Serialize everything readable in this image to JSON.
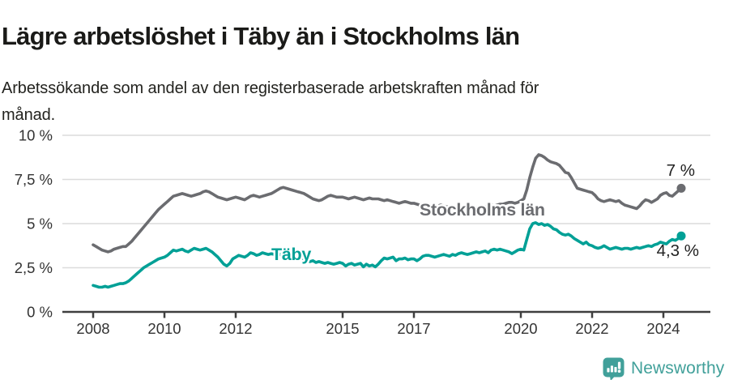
{
  "header": {
    "title": "Lägre arbetslöshet i Täby än i Stockholms län",
    "subtitle": "Arbetssökande som andel av den registerbaserade arbetskraften månad för\nmånad."
  },
  "chart_data": {
    "type": "line",
    "title": "Lägre arbetslöshet i Täby än i Stockholms län",
    "xlabel": "",
    "ylabel": "",
    "unit": "%",
    "grid": true,
    "ylim": [
      0,
      10
    ],
    "x_start_year": 2008,
    "points_per_year": 12,
    "x_end": "mid 2024",
    "y_ticks": [
      {
        "value": 10,
        "label": "10 %"
      },
      {
        "value": 7.5,
        "label": "7,5 %"
      },
      {
        "value": 5,
        "label": "5 %"
      },
      {
        "value": 2.5,
        "label": "2,5 %"
      },
      {
        "value": 0,
        "label": "0 %"
      }
    ],
    "x_ticks": [
      {
        "year": 2008,
        "label": "2008"
      },
      {
        "year": 2010,
        "label": "2010"
      },
      {
        "year": 2012,
        "label": "2012"
      },
      {
        "year": 2015,
        "label": "2015"
      },
      {
        "year": 2017,
        "label": "2017"
      },
      {
        "year": 2020,
        "label": "2020"
      },
      {
        "year": 2022,
        "label": "2022"
      },
      {
        "year": 2024,
        "label": "2024"
      }
    ],
    "series": [
      {
        "name": "Stockholms län",
        "color": "#6b6c70",
        "end_label": "7 %",
        "end_value": 7.0,
        "values": [
          3.8,
          3.7,
          3.6,
          3.5,
          3.45,
          3.4,
          3.45,
          3.55,
          3.6,
          3.65,
          3.7,
          3.7,
          3.85,
          4.0,
          4.2,
          4.4,
          4.6,
          4.8,
          5.0,
          5.2,
          5.4,
          5.6,
          5.8,
          5.95,
          6.1,
          6.25,
          6.4,
          6.55,
          6.6,
          6.65,
          6.7,
          6.65,
          6.6,
          6.55,
          6.6,
          6.65,
          6.7,
          6.8,
          6.85,
          6.8,
          6.7,
          6.6,
          6.5,
          6.45,
          6.4,
          6.35,
          6.4,
          6.45,
          6.5,
          6.45,
          6.4,
          6.35,
          6.45,
          6.55,
          6.6,
          6.55,
          6.5,
          6.55,
          6.6,
          6.65,
          6.7,
          6.8,
          6.9,
          7.0,
          7.05,
          7.0,
          6.95,
          6.9,
          6.85,
          6.8,
          6.75,
          6.7,
          6.6,
          6.5,
          6.4,
          6.35,
          6.3,
          6.35,
          6.45,
          6.55,
          6.6,
          6.55,
          6.5,
          6.5,
          6.5,
          6.45,
          6.4,
          6.45,
          6.5,
          6.45,
          6.4,
          6.35,
          6.4,
          6.45,
          6.4,
          6.4,
          6.4,
          6.35,
          6.3,
          6.35,
          6.3,
          6.25,
          6.2,
          6.15,
          6.2,
          6.25,
          6.2,
          6.15,
          6.15,
          6.1,
          6.05,
          6.1,
          6.05,
          6.0,
          6.0,
          5.95,
          6.0,
          6.05,
          6.0,
          5.95,
          5.95,
          5.9,
          5.85,
          5.9,
          5.85,
          5.8,
          5.85,
          5.9,
          5.85,
          5.9,
          5.95,
          5.9,
          5.95,
          6.0,
          6.05,
          6.0,
          6.05,
          6.1,
          6.1,
          6.15,
          6.2,
          6.2,
          6.15,
          6.2,
          6.3,
          6.4,
          6.9,
          7.6,
          8.2,
          8.7,
          8.9,
          8.85,
          8.75,
          8.6,
          8.5,
          8.45,
          8.4,
          8.3,
          8.1,
          7.9,
          7.85,
          7.6,
          7.3,
          7.0,
          6.95,
          6.9,
          6.85,
          6.8,
          6.75,
          6.6,
          6.4,
          6.3,
          6.25,
          6.3,
          6.35,
          6.3,
          6.25,
          6.3,
          6.15,
          6.05,
          6.0,
          5.95,
          5.9,
          5.85,
          6.0,
          6.2,
          6.35,
          6.3,
          6.2,
          6.3,
          6.4,
          6.6,
          6.7,
          6.75,
          6.6,
          6.55,
          6.7,
          6.85,
          7.0
        ]
      },
      {
        "name": "Täby",
        "color": "#00a096",
        "end_label": "4,3 %",
        "end_value": 4.3,
        "values": [
          1.5,
          1.45,
          1.4,
          1.4,
          1.45,
          1.4,
          1.45,
          1.5,
          1.55,
          1.6,
          1.6,
          1.65,
          1.75,
          1.9,
          2.05,
          2.2,
          2.35,
          2.5,
          2.6,
          2.7,
          2.8,
          2.9,
          3.0,
          3.05,
          3.1,
          3.2,
          3.35,
          3.5,
          3.45,
          3.5,
          3.55,
          3.45,
          3.4,
          3.5,
          3.6,
          3.55,
          3.5,
          3.55,
          3.6,
          3.5,
          3.4,
          3.25,
          3.1,
          2.9,
          2.7,
          2.6,
          2.75,
          3.0,
          3.1,
          3.2,
          3.15,
          3.1,
          3.2,
          3.35,
          3.3,
          3.2,
          3.25,
          3.35,
          3.3,
          3.25,
          3.3,
          3.25,
          3.2,
          3.25,
          3.15,
          3.1,
          3.05,
          3.1,
          3.0,
          2.95,
          3.0,
          2.95,
          2.9,
          2.85,
          2.9,
          2.8,
          2.85,
          2.8,
          2.75,
          2.8,
          2.75,
          2.7,
          2.75,
          2.8,
          2.75,
          2.6,
          2.7,
          2.75,
          2.65,
          2.7,
          2.75,
          2.55,
          2.7,
          2.6,
          2.65,
          2.55,
          2.7,
          2.9,
          3.05,
          3.0,
          3.05,
          3.1,
          2.9,
          3.0,
          3.0,
          3.05,
          2.95,
          3.0,
          3.0,
          2.9,
          3.0,
          3.15,
          3.2,
          3.2,
          3.15,
          3.1,
          3.15,
          3.2,
          3.25,
          3.2,
          3.15,
          3.25,
          3.2,
          3.3,
          3.35,
          3.3,
          3.25,
          3.3,
          3.35,
          3.4,
          3.35,
          3.4,
          3.45,
          3.35,
          3.5,
          3.55,
          3.5,
          3.55,
          3.5,
          3.45,
          3.4,
          3.3,
          3.4,
          3.5,
          3.55,
          3.5,
          4.1,
          4.7,
          5.0,
          5.05,
          4.95,
          5.0,
          4.9,
          4.95,
          4.85,
          4.7,
          4.65,
          4.5,
          4.4,
          4.35,
          4.4,
          4.3,
          4.15,
          4.05,
          3.95,
          3.85,
          3.95,
          3.8,
          3.75,
          3.65,
          3.6,
          3.65,
          3.75,
          3.65,
          3.55,
          3.6,
          3.65,
          3.6,
          3.55,
          3.6,
          3.6,
          3.55,
          3.6,
          3.65,
          3.6,
          3.65,
          3.7,
          3.75,
          3.7,
          3.8,
          3.85,
          3.95,
          3.9,
          3.85,
          4.0,
          4.1,
          4.05,
          4.15,
          4.3
        ]
      }
    ]
  },
  "footer": {
    "brand": "Newsworthy",
    "brand_color": "#41a09a",
    "icon": "newsworthy-barchart-bubble-icon"
  },
  "colors": {
    "stockholm_line": "#6b6c70",
    "taby_line": "#00a096",
    "gridline": "#dcdcdc",
    "axis": "#3f3f3f",
    "tick_text": "#333333",
    "annotation_text": "#222222"
  }
}
